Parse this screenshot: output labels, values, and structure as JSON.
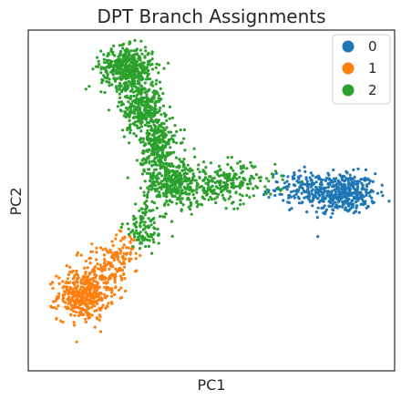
{
  "chart_data": {
    "type": "scatter",
    "title": "DPT Branch Assignments",
    "xlabel": "PC1",
    "ylabel": "PC2",
    "xlim": [
      -1.0,
      1.0
    ],
    "ylim": [
      -1.0,
      1.0
    ],
    "grid": false,
    "ticks_visible": false,
    "legend_placement": "top-right",
    "point_counts_note": "",
    "series": [
      {
        "name": "0",
        "color": "#1f77b4",
        "clusters": [
          {
            "center": [
              0.72,
              0.04
            ],
            "spread": [
              0.09,
              0.06
            ],
            "n": 380
          },
          {
            "center": [
              0.52,
              0.07
            ],
            "spread": [
              0.1,
              0.05
            ],
            "n": 160
          }
        ]
      },
      {
        "name": "1",
        "color": "#ff7f0e",
        "clusters": [
          {
            "center": [
              -0.7,
              -0.56
            ],
            "spread": [
              0.07,
              0.07
            ],
            "n": 380
          },
          {
            "center": [
              -0.57,
              -0.4
            ],
            "spread": [
              0.07,
              0.07
            ],
            "n": 120
          },
          {
            "center": [
              -0.47,
              -0.28
            ],
            "spread": [
              0.05,
              0.05
            ],
            "n": 50
          }
        ]
      },
      {
        "name": "2",
        "color": "#2ca02c",
        "clusters": [
          {
            "center": [
              -0.46,
              0.78
            ],
            "spread": [
              0.07,
              0.06
            ],
            "n": 450
          },
          {
            "center": [
              -0.38,
              0.55
            ],
            "spread": [
              0.06,
              0.08
            ],
            "n": 320
          },
          {
            "center": [
              -0.29,
              0.31
            ],
            "spread": [
              0.05,
              0.09
            ],
            "n": 260
          },
          {
            "center": [
              -0.2,
              0.1
            ],
            "spread": [
              0.08,
              0.07
            ],
            "n": 320
          },
          {
            "center": [
              0.07,
              0.1
            ],
            "spread": [
              0.14,
              0.06
            ],
            "n": 240
          },
          {
            "center": [
              -0.36,
              -0.16
            ],
            "spread": [
              0.06,
              0.07
            ],
            "n": 110
          }
        ]
      }
    ]
  }
}
